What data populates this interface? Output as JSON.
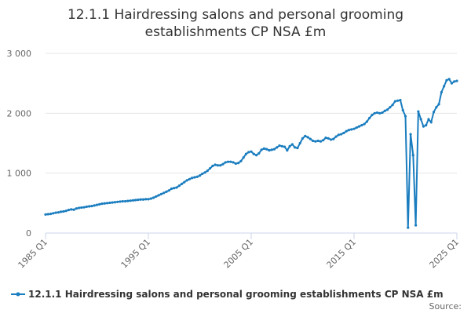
{
  "chart_data": {
    "type": "line",
    "title": "12.1.1 Hairdressing salons and personal grooming establishments CP NSA £m",
    "source": "Source:",
    "categories": [
      "1985 Q1",
      null,
      null,
      null,
      null,
      null,
      null,
      null,
      null,
      null,
      null,
      null,
      null,
      null,
      null,
      null,
      null,
      null,
      null,
      null,
      null,
      null,
      null,
      null,
      null,
      null,
      null,
      null,
      null,
      null,
      null,
      null,
      null,
      null,
      null,
      null,
      null,
      null,
      null,
      null,
      "1995 Q1",
      null,
      null,
      null,
      null,
      null,
      null,
      null,
      null,
      null,
      null,
      null,
      null,
      null,
      null,
      null,
      null,
      null,
      null,
      null,
      null,
      null,
      null,
      null,
      null,
      null,
      null,
      null,
      null,
      null,
      null,
      null,
      null,
      null,
      null,
      null,
      null,
      null,
      null,
      null,
      "2005 Q1",
      null,
      null,
      null,
      null,
      null,
      null,
      null,
      null,
      null,
      null,
      null,
      null,
      null,
      null,
      null,
      null,
      null,
      null,
      null,
      null,
      null,
      null,
      null,
      null,
      null,
      null,
      null,
      null,
      null,
      null,
      null,
      null,
      null,
      null,
      null,
      null,
      null,
      null,
      null,
      "2015 Q1",
      null,
      null,
      null,
      null,
      null,
      null,
      null,
      null,
      null,
      null,
      null,
      null,
      null,
      null,
      null,
      null,
      null,
      null,
      null,
      null,
      null,
      null,
      null,
      null,
      null,
      null,
      null,
      null,
      null,
      null,
      null,
      null,
      null,
      null,
      null,
      null,
      null,
      null,
      null,
      "2025 Q1"
    ],
    "series": [
      {
        "name": "12.1.1 Hairdressing salons and personal grooming establishments CP NSA £m",
        "color": "#1a7dbf",
        "values": [
          310,
          315,
          320,
          330,
          340,
          345,
          355,
          360,
          370,
          385,
          395,
          390,
          410,
          420,
          425,
          430,
          440,
          445,
          450,
          460,
          470,
          480,
          490,
          495,
          500,
          505,
          510,
          515,
          520,
          525,
          530,
          530,
          535,
          540,
          545,
          550,
          555,
          560,
          560,
          565,
          565,
          575,
          590,
          610,
          630,
          650,
          670,
          690,
          710,
          740,
          750,
          760,
          790,
          820,
          850,
          880,
          900,
          920,
          930,
          940,
          960,
          990,
          1010,
          1040,
          1080,
          1120,
          1140,
          1130,
          1130,
          1150,
          1180,
          1190,
          1190,
          1180,
          1160,
          1170,
          1200,
          1260,
          1320,
          1350,
          1360,
          1320,
          1300,
          1330,
          1390,
          1410,
          1400,
          1380,
          1390,
          1400,
          1430,
          1460,
          1450,
          1440,
          1380,
          1450,
          1480,
          1430,
          1420,
          1500,
          1580,
          1620,
          1600,
          1570,
          1540,
          1530,
          1540,
          1530,
          1550,
          1590,
          1580,
          1560,
          1570,
          1610,
          1640,
          1650,
          1670,
          1700,
          1720,
          1730,
          1740,
          1760,
          1780,
          1800,
          1820,
          1860,
          1920,
          1970,
          2000,
          2010,
          2000,
          2010,
          2040,
          2060,
          2100,
          2140,
          2200,
          2210,
          2220,
          2050,
          1950,
          90,
          1650,
          1300,
          130,
          2030,
          1900,
          1780,
          1800,
          1900,
          1850,
          2020,
          2100,
          2150,
          2350,
          2450,
          2550,
          2570,
          2500,
          2530,
          2540
        ]
      }
    ],
    "ylim": [
      0,
      3000
    ],
    "yticks": [
      0,
      {
        "value": 1000,
        "label": "1 000"
      },
      {
        "value": 2000,
        "label": "2 000"
      },
      {
        "value": 3000,
        "label": "3 000"
      }
    ],
    "grid": true
  }
}
